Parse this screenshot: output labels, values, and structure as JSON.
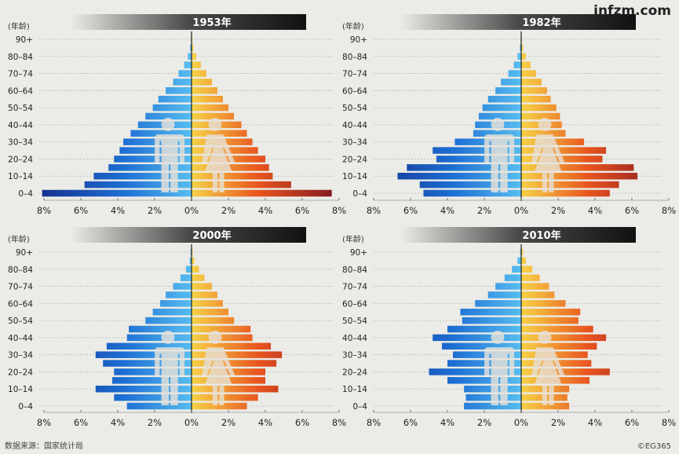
{
  "brand": "infzm.com",
  "source": "数据来源：国家统计局",
  "credit": "©EG365",
  "chart_data": [
    {
      "type": "bar",
      "title": "1953年",
      "ylabel": "(年龄)",
      "categories": [
        "0–4",
        "5–9",
        "10–14",
        "15–19",
        "20–24",
        "25–29",
        "30–34",
        "35–39",
        "40–44",
        "45–49",
        "50–54",
        "55–59",
        "60–64",
        "65–69",
        "70–74",
        "75–79",
        "80–84",
        "85–89",
        "90+"
      ],
      "category_labels": [
        "0–4",
        "10–14",
        "20–24",
        "30–34",
        "40–44",
        "50–54",
        "60–64",
        "70–74",
        "80–84",
        "90+"
      ],
      "xticks": [
        "8%",
        "6%",
        "4%",
        "2%",
        "0%",
        "2%",
        "4%",
        "6%",
        "8%"
      ],
      "xlim": [
        -8,
        8
      ],
      "series": [
        {
          "name": "男",
          "values": [
            8.1,
            5.8,
            5.3,
            4.5,
            4.2,
            3.9,
            3.7,
            3.3,
            2.9,
            2.5,
            2.1,
            1.8,
            1.4,
            1.0,
            0.7,
            0.4,
            0.2,
            0.08,
            0.03
          ]
        },
        {
          "name": "女",
          "values": [
            7.6,
            5.4,
            4.4,
            4.2,
            4.0,
            3.6,
            3.3,
            3.0,
            2.7,
            2.3,
            2.0,
            1.7,
            1.4,
            1.1,
            0.8,
            0.5,
            0.25,
            0.1,
            0.05
          ]
        }
      ]
    },
    {
      "type": "bar",
      "title": "1982年",
      "ylabel": "(年龄)",
      "categories": [
        "0–4",
        "5–9",
        "10–14",
        "15–19",
        "20–24",
        "25–29",
        "30–34",
        "35–39",
        "40–44",
        "45–49",
        "50–54",
        "55–59",
        "60–64",
        "65–69",
        "70–74",
        "75–79",
        "80–84",
        "85–89",
        "90+"
      ],
      "category_labels": [
        "0–4",
        "10–14",
        "20–24",
        "30–34",
        "40–44",
        "50–54",
        "60–64",
        "70–74",
        "80–84",
        "90+"
      ],
      "xticks": [
        "8%",
        "6%",
        "4%",
        "2%",
        "0%",
        "2%",
        "4%",
        "6%",
        "8%"
      ],
      "xlim": [
        -8,
        8
      ],
      "series": [
        {
          "name": "男",
          "values": [
            5.3,
            5.5,
            6.7,
            6.2,
            4.6,
            4.8,
            3.6,
            2.6,
            2.5,
            2.3,
            2.1,
            1.8,
            1.4,
            1.1,
            0.7,
            0.4,
            0.2,
            0.08,
            0.03
          ]
        },
        {
          "name": "女",
          "values": [
            4.8,
            5.3,
            6.3,
            6.1,
            4.4,
            4.6,
            3.4,
            2.4,
            2.2,
            2.1,
            1.9,
            1.6,
            1.4,
            1.1,
            0.8,
            0.5,
            0.25,
            0.1,
            0.04
          ]
        }
      ]
    },
    {
      "type": "bar",
      "title": "2000年",
      "ylabel": "(年龄)",
      "categories": [
        "0–4",
        "5–9",
        "10–14",
        "15–19",
        "20–24",
        "25–29",
        "30–34",
        "35–39",
        "40–44",
        "45–49",
        "50–54",
        "55–59",
        "60–64",
        "65–69",
        "70–74",
        "75–79",
        "80–84",
        "85–89",
        "90+"
      ],
      "category_labels": [
        "0–4",
        "10–14",
        "20–24",
        "30–34",
        "40–44",
        "50–54",
        "60–64",
        "70–74",
        "80–84",
        "90+"
      ],
      "xticks": [
        "8%",
        "6%",
        "4%",
        "2%",
        "0%",
        "2%",
        "4%",
        "6%",
        "8%"
      ],
      "xlim": [
        -8,
        8
      ],
      "series": [
        {
          "name": "男",
          "values": [
            3.5,
            4.2,
            5.2,
            4.3,
            4.2,
            4.8,
            5.2,
            4.6,
            3.5,
            3.4,
            2.5,
            2.1,
            1.7,
            1.4,
            1.0,
            0.6,
            0.3,
            0.1,
            0.05
          ]
        },
        {
          "name": "女",
          "values": [
            3.0,
            3.6,
            4.7,
            4.0,
            4.0,
            4.6,
            4.9,
            4.3,
            3.3,
            3.2,
            2.3,
            2.0,
            1.7,
            1.4,
            1.1,
            0.7,
            0.4,
            0.15,
            0.06
          ]
        }
      ]
    },
    {
      "type": "bar",
      "title": "2010年",
      "ylabel": "(年龄)",
      "categories": [
        "0–4",
        "5–9",
        "10–14",
        "15–19",
        "20–24",
        "25–29",
        "30–34",
        "35–39",
        "40–44",
        "45–49",
        "50–54",
        "55–59",
        "60–64",
        "65–69",
        "70–74",
        "75–79",
        "80–84",
        "85–89",
        "90+"
      ],
      "category_labels": [
        "0–4",
        "10–14",
        "20–24",
        "30–34",
        "40–44",
        "50–54",
        "60–64",
        "70–74",
        "80–84",
        "90+"
      ],
      "xticks": [
        "8%",
        "6%",
        "4%",
        "2%",
        "0%",
        "2%",
        "4%",
        "6%",
        "8%"
      ],
      "xlim": [
        -8,
        8
      ],
      "series": [
        {
          "name": "男",
          "values": [
            3.1,
            3.0,
            3.1,
            4.0,
            5.0,
            4.0,
            3.7,
            4.3,
            4.8,
            4.0,
            3.2,
            3.3,
            2.5,
            1.8,
            1.4,
            0.9,
            0.5,
            0.2,
            0.06
          ]
        },
        {
          "name": "女",
          "values": [
            2.6,
            2.5,
            2.6,
            3.7,
            4.8,
            3.8,
            3.6,
            4.1,
            4.6,
            3.9,
            3.1,
            3.2,
            2.4,
            1.8,
            1.5,
            1.0,
            0.6,
            0.25,
            0.1
          ]
        }
      ]
    }
  ],
  "colors": {
    "male_outer": "#14318f",
    "male_mid": "#1d6fd4",
    "male_inner": "#57bdf0",
    "female_inner": "#f7d347",
    "female_mid": "#e8541f",
    "female_outer": "#7a1424",
    "axis": "#222222",
    "grid": "#b9b9b4",
    "figure": "#e7e2da"
  }
}
